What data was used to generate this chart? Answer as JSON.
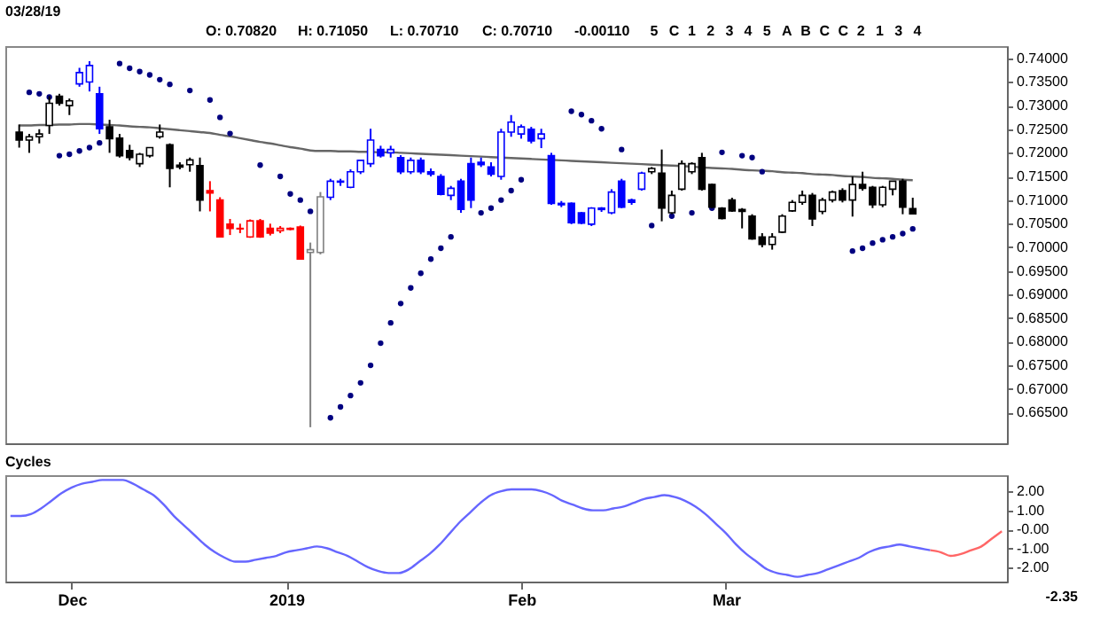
{
  "chart_data": [
    {
      "type": "candlestick",
      "title": "03/28/19",
      "annotations": [
        "O: 0.70820",
        "H: 0.71050",
        "L: 0.70710",
        "C: 0.70710",
        "-0.00110",
        "5",
        "C",
        "1",
        "2",
        "3",
        "4",
        "5",
        "A",
        "B",
        "C",
        "C",
        "2",
        "1",
        "3",
        "4"
      ],
      "ylim": [
        0.6585,
        0.7426
      ],
      "tick_labels": "y",
      "yticks": [
        {
          "value": 0.74,
          "label": "0.74000"
        },
        {
          "value": 0.735,
          "label": "0.73500"
        },
        {
          "value": 0.73,
          "label": "0.73000"
        },
        {
          "value": 0.725,
          "label": "0.72500"
        },
        {
          "value": 0.72,
          "label": "0.72000"
        },
        {
          "value": 0.715,
          "label": "0.71500"
        },
        {
          "value": 0.71,
          "label": "0.71000"
        },
        {
          "value": 0.705,
          "label": "0.70500"
        },
        {
          "value": 0.7,
          "label": "0.70000"
        },
        {
          "value": 0.695,
          "label": "0.69500"
        },
        {
          "value": 0.69,
          "label": "0.69000"
        },
        {
          "value": 0.685,
          "label": "0.68500"
        },
        {
          "value": 0.68,
          "label": "0.68000"
        },
        {
          "value": 0.675,
          "label": "0.67500"
        },
        {
          "value": 0.67,
          "label": "0.67000"
        },
        {
          "value": 0.665,
          "label": "0.66500"
        }
      ],
      "categories": [
        null,
        null,
        null,
        null,
        null,
        null,
        null,
        null,
        null,
        null,
        null,
        null,
        null,
        null,
        null,
        null,
        null,
        null,
        null,
        null,
        null,
        null,
        null,
        null,
        null,
        null,
        null,
        null,
        null,
        null,
        null,
        null,
        null,
        null,
        null,
        null,
        null,
        null,
        null,
        null,
        null,
        null,
        null,
        null,
        null,
        null,
        null,
        null,
        null,
        null,
        null,
        null,
        null,
        null,
        null,
        null,
        null,
        null,
        null,
        null,
        null,
        null,
        null,
        null,
        null,
        null,
        null,
        null,
        null,
        null,
        null,
        null,
        null,
        null,
        null,
        null,
        null,
        null,
        null,
        null,
        null,
        null,
        null,
        null,
        null,
        null,
        null,
        null,
        null,
        null
      ],
      "ohlc": [
        [
          0.7244,
          0.726,
          0.7211,
          0.7227
        ],
        [
          0.7227,
          0.724,
          0.72,
          0.7234
        ],
        [
          0.7234,
          0.725,
          0.722,
          0.724
        ],
        [
          0.7258,
          0.732,
          0.724,
          0.7305
        ],
        [
          0.732,
          0.7325,
          0.73,
          0.7305
        ],
        [
          0.73,
          0.7315,
          0.728,
          0.731
        ],
        [
          0.7346,
          0.738,
          0.734,
          0.737
        ],
        [
          0.735,
          0.7394,
          0.733,
          0.7385
        ],
        [
          0.7325,
          0.734,
          0.724,
          0.7251
        ],
        [
          0.7255,
          0.727,
          0.72,
          0.723
        ],
        [
          0.7231,
          0.724,
          0.719,
          0.7194
        ],
        [
          0.7205,
          0.7217,
          0.7184,
          0.719
        ],
        [
          0.7177,
          0.72,
          0.717,
          0.7197
        ],
        [
          0.7194,
          0.7211,
          0.719,
          0.7211
        ],
        [
          0.7234,
          0.726,
          0.723,
          0.7244
        ],
        [
          0.7217,
          0.722,
          0.7127,
          0.7167
        ],
        [
          0.7174,
          0.718,
          0.7165,
          0.717
        ],
        [
          0.7175,
          0.719,
          0.716,
          0.7185
        ],
        [
          0.7173,
          0.719,
          0.7076,
          0.71
        ],
        [
          0.712,
          0.714,
          0.7076,
          0.7115
        ],
        [
          0.71,
          0.7106,
          0.7022,
          0.7022
        ],
        [
          0.7049,
          0.706,
          0.7026,
          0.704
        ],
        [
          0.704,
          0.705,
          0.703,
          0.7039
        ],
        [
          0.7022,
          0.7059,
          0.702,
          0.7056
        ],
        [
          0.7056,
          0.706,
          0.702,
          0.7022
        ],
        [
          0.704,
          0.705,
          0.7025,
          0.703
        ],
        [
          0.7035,
          0.7045,
          0.703,
          0.704
        ],
        [
          0.7038,
          0.7042,
          0.7036,
          0.704
        ],
        [
          0.7043,
          0.7046,
          0.6975,
          0.6975
        ],
        [
          0.6989,
          0.701,
          0.6619,
          0.6995
        ],
        [
          0.6989,
          0.7117,
          0.6985,
          0.7107
        ],
        [
          0.7106,
          0.7145,
          0.71,
          0.714
        ],
        [
          0.7138,
          0.7145,
          0.713,
          0.714
        ],
        [
          0.7127,
          0.7165,
          0.7125,
          0.716
        ],
        [
          0.716,
          0.7184,
          0.7155,
          0.7184
        ],
        [
          0.7177,
          0.7251,
          0.717,
          0.7227
        ],
        [
          0.7207,
          0.7215,
          0.719,
          0.7194
        ],
        [
          0.72,
          0.7215,
          0.719,
          0.7207
        ],
        [
          0.719,
          0.7195,
          0.7155,
          0.716
        ],
        [
          0.716,
          0.719,
          0.7155,
          0.7184
        ],
        [
          0.7184,
          0.719,
          0.7155,
          0.716
        ],
        [
          0.716,
          0.7167,
          0.715,
          0.7155
        ],
        [
          0.715,
          0.7155,
          0.711,
          0.7112
        ],
        [
          0.711,
          0.713,
          0.71,
          0.7125
        ],
        [
          0.714,
          0.7145,
          0.7073,
          0.708
        ],
        [
          0.7177,
          0.719,
          0.7083,
          0.71
        ],
        [
          0.718,
          0.719,
          0.717,
          0.7175
        ],
        [
          0.717,
          0.718,
          0.715,
          0.7155
        ],
        [
          0.715,
          0.7251,
          0.7143,
          0.7244
        ],
        [
          0.7244,
          0.728,
          0.7234,
          0.7265
        ],
        [
          0.724,
          0.726,
          0.723,
          0.7255
        ],
        [
          0.725,
          0.7255,
          0.722,
          0.7225
        ],
        [
          0.723,
          0.7251,
          0.721,
          0.724
        ],
        [
          0.7194,
          0.72,
          0.709,
          0.7093
        ],
        [
          0.7093,
          0.7098,
          0.7085,
          0.709
        ],
        [
          0.7093,
          0.7095,
          0.7049,
          0.7052
        ],
        [
          0.7073,
          0.7075,
          0.7049,
          0.7051
        ],
        [
          0.7049,
          0.7085,
          0.7045,
          0.7083
        ],
        [
          0.708,
          0.7085,
          0.7075,
          0.7083
        ],
        [
          0.7073,
          0.7123,
          0.707,
          0.7117
        ],
        [
          0.714,
          0.7145,
          0.7083,
          0.7085
        ],
        [
          0.71,
          0.7103,
          0.709,
          0.7095
        ],
        [
          0.7123,
          0.716,
          0.712,
          0.7157
        ],
        [
          0.716,
          0.717,
          0.7155,
          0.7167
        ],
        [
          0.7157,
          0.7207,
          0.7055,
          0.7083
        ],
        [
          0.7073,
          0.712,
          0.707,
          0.711
        ],
        [
          0.7123,
          0.7184,
          0.712,
          0.7177
        ],
        [
          0.716,
          0.718,
          0.7155,
          0.7177
        ],
        [
          0.719,
          0.72,
          0.712,
          0.7123
        ],
        [
          0.7133,
          0.7135,
          0.7083,
          0.7085
        ],
        [
          0.7083,
          0.7085,
          0.7059,
          0.7061
        ],
        [
          0.71,
          0.7105,
          0.7075,
          0.7077
        ],
        [
          0.708,
          0.7083,
          0.704,
          0.7076
        ],
        [
          0.7066,
          0.707,
          0.7016,
          0.7018
        ],
        [
          0.7022,
          0.703,
          0.7,
          0.7006
        ],
        [
          0.7006,
          0.703,
          0.6995,
          0.7022
        ],
        [
          0.7032,
          0.707,
          0.703,
          0.7066
        ],
        [
          0.7077,
          0.71,
          0.7075,
          0.7095
        ],
        [
          0.7095,
          0.712,
          0.709,
          0.711
        ],
        [
          0.711,
          0.7115,
          0.7045,
          0.706
        ],
        [
          0.7076,
          0.7105,
          0.707,
          0.71
        ],
        [
          0.71,
          0.712,
          0.7095,
          0.7117
        ],
        [
          0.712,
          0.7125,
          0.7095,
          0.71
        ],
        [
          0.71,
          0.715,
          0.7065,
          0.7133
        ],
        [
          0.7133,
          0.716,
          0.712,
          0.7125
        ],
        [
          0.7127,
          0.713,
          0.7083,
          0.709
        ],
        [
          0.709,
          0.713,
          0.7085,
          0.7127
        ],
        [
          0.7123,
          0.714,
          0.711,
          0.714
        ],
        [
          0.714,
          0.7145,
          0.707,
          0.7085
        ],
        [
          0.7082,
          0.7105,
          0.7071,
          0.7071
        ]
      ],
      "colors": [
        "#000000",
        "#000000",
        "#000000",
        "#000000",
        "#000000",
        "#000000",
        "#0000ff",
        "#0000ff",
        "#0000ff",
        "#000000",
        "#000000",
        "#000000",
        "#000000",
        "#000000",
        "#000000",
        "#000000",
        "#000000",
        "#000000",
        "#000000",
        "#ff0000",
        "#ff0000",
        "#ff0000",
        "#ff0000",
        "#ff0000",
        "#ff0000",
        "#ff0000",
        "#ff0000",
        "#ff0000",
        "#ff0000",
        "#808080",
        "#808080",
        "#0000ff",
        "#0000ff",
        "#0000ff",
        "#0000ff",
        "#0000ff",
        "#0000ff",
        "#0000ff",
        "#0000ff",
        "#0000ff",
        "#0000ff",
        "#0000ff",
        "#0000ff",
        "#0000ff",
        "#0000ff",
        "#0000ff",
        "#0000ff",
        "#0000ff",
        "#0000ff",
        "#0000ff",
        "#0000ff",
        "#0000ff",
        "#0000ff",
        "#0000ff",
        "#0000ff",
        "#0000ff",
        "#0000ff",
        "#0000ff",
        "#0000ff",
        "#0000ff",
        "#0000ff",
        "#0000ff",
        "#0000ff",
        "#000000",
        "#000000",
        "#000000",
        "#000000",
        "#000000",
        "#000000",
        "#000000",
        "#000000",
        "#000000",
        "#000000",
        "#000000",
        "#000000",
        "#000000",
        "#000000",
        "#000000",
        "#000000",
        "#000000",
        "#000000",
        "#000000",
        "#000000",
        "#000000",
        "#000000",
        "#000000",
        "#000000",
        "#000000",
        "#000000",
        "#000000"
      ],
      "series": [
        {
          "type": "line",
          "color": "#666666",
          "values": [
            0.7258,
            0.7258,
            0.7259,
            0.7259,
            0.726,
            0.726,
            0.7261,
            0.7261,
            0.726,
            0.7259,
            0.7258,
            0.7256,
            0.7255,
            0.7254,
            0.7252,
            0.725,
            0.7248,
            0.7246,
            0.7244,
            0.7242,
            0.7238,
            0.7235,
            0.7231,
            0.7227,
            0.7223,
            0.722,
            0.7216,
            0.7212,
            0.7209,
            0.7205,
            0.7204,
            0.7204,
            0.7203,
            0.7203,
            0.7202,
            0.7202,
            0.7201,
            0.7201,
            0.72,
            0.7199,
            0.7198,
            0.7197,
            0.7196,
            0.7195,
            0.7194,
            0.7193,
            0.7192,
            0.7191,
            0.719,
            0.7189,
            0.7188,
            0.7187,
            0.7186,
            0.7185,
            0.7184,
            0.7183,
            0.7182,
            0.7181,
            0.718,
            0.7179,
            0.7178,
            0.7177,
            0.7176,
            0.7175,
            0.7174,
            0.7173,
            0.7172,
            0.7171,
            0.7169,
            0.7168,
            0.7167,
            0.7166,
            0.7164,
            0.7163,
            0.7162,
            0.7161,
            0.7159,
            0.7158,
            0.7157,
            0.7155,
            0.7154,
            0.7153,
            0.7151,
            0.715,
            0.7149,
            0.7147,
            0.7146,
            0.7145,
            0.7143,
            0.7142
          ]
        },
        {
          "type": "scatter",
          "color": "#000080",
          "values": [
            null,
            0.7328,
            0.7325,
            0.7318,
            0.7194,
            0.7197,
            0.7204,
            0.7211,
            0.7221,
            null,
            0.7389,
            0.7379,
            0.7372,
            0.7365,
            0.7355,
            0.7345,
            null,
            0.7332,
            null,
            0.7312,
            0.7275,
            0.7241,
            null,
            null,
            0.7174,
            null,
            0.715,
            0.7113,
            0.71,
            0.7076,
            null,
            0.6639,
            0.6662,
            0.6686,
            0.6713,
            0.675,
            0.6797,
            0.684,
            0.6881,
            0.6914,
            0.6945,
            0.6975,
            0.6998,
            0.7022,
            null,
            null,
            0.7073,
            0.7083,
            0.71,
            0.712,
            0.7143,
            null,
            null,
            null,
            null,
            0.7288,
            0.7281,
            0.7268,
            0.7251,
            null,
            0.7207,
            null,
            null,
            0.7046,
            null,
            0.7066,
            null,
            0.7073,
            null,
            0.7083,
            0.7201,
            null,
            0.7194,
            0.719,
            0.716,
            null,
            null,
            null,
            null,
            null,
            null,
            null,
            null,
            0.6992,
            0.6998,
            0.7009,
            0.7016,
            0.7022,
            0.7029,
            0.7039
          ]
        }
      ]
    },
    {
      "type": "line",
      "title": "Cycles",
      "annotations": [
        "-2.35"
      ],
      "ylim": [
        -2.75,
        2.85
      ],
      "categories": [
        null,
        null,
        null,
        null,
        null,
        null,
        "Dec",
        null,
        null,
        null,
        null,
        null,
        null,
        null,
        null,
        null,
        null,
        null,
        null,
        null,
        null,
        null,
        null,
        null,
        null,
        null,
        null,
        "2019",
        null,
        null,
        null,
        null,
        null,
        null,
        null,
        null,
        null,
        null,
        null,
        null,
        null,
        null,
        null,
        null,
        null,
        null,
        null,
        null,
        null,
        null,
        "Feb",
        null,
        null,
        null,
        null,
        null,
        null,
        null,
        null,
        null,
        null,
        null,
        null,
        null,
        null,
        null,
        null,
        null,
        null,
        null,
        "Mar",
        null,
        null,
        null,
        null,
        null,
        null,
        null,
        null,
        null,
        null,
        null,
        null,
        null,
        null,
        null,
        null,
        null,
        null,
        null,
        null,
        null,
        null,
        null,
        null,
        null,
        null,
        null
      ],
      "yticks": [
        {
          "value": 2,
          "label": "2.00"
        },
        {
          "value": 1,
          "label": "1.00"
        },
        {
          "value": 0,
          "label": "-0.00"
        },
        {
          "value": -1,
          "label": "-1.00"
        },
        {
          "value": -2,
          "label": "-2.00"
        }
      ],
      "series": [
        {
          "color": "#6666ff",
          "values": [
            0.7,
            0.7,
            0.8,
            1.1,
            1.5,
            1.9,
            2.2,
            2.4,
            2.5,
            2.6,
            2.6,
            2.6,
            2.4,
            2.1,
            1.8,
            1.3,
            0.7,
            0.2,
            -0.3,
            -0.8,
            -1.2,
            -1.5,
            -1.7,
            -1.7,
            -1.6,
            -1.5,
            -1.4,
            -1.2,
            -1.1,
            -1.0,
            -0.9,
            -1.0,
            -1.2,
            -1.4,
            -1.7,
            -2.0,
            -2.2,
            -2.3,
            -2.3,
            -2.1,
            -1.7,
            -1.3,
            -0.8,
            -0.2,
            0.4,
            0.9,
            1.4,
            1.8,
            2.0,
            2.1,
            2.1,
            2.1,
            2.0,
            1.8,
            1.5,
            1.3,
            1.1,
            1.0,
            1.0,
            1.1,
            1.2,
            1.4,
            1.6,
            1.7,
            1.8,
            1.7,
            1.5,
            1.2,
            0.8,
            0.3,
            -0.2,
            -0.8,
            -1.3,
            -1.7,
            -2.1,
            -2.3,
            -2.4,
            -2.5,
            -2.4,
            -2.3,
            -2.1,
            -1.9,
            -1.7,
            -1.5,
            -1.2,
            -1.0,
            -0.9,
            -0.8,
            -0.9,
            -1.0,
            -1.1,
            null,
            null,
            null,
            null,
            null,
            null,
            null
          ]
        },
        {
          "color": "#ff6666",
          "values": [
            null,
            null,
            null,
            null,
            null,
            null,
            null,
            null,
            null,
            null,
            null,
            null,
            null,
            null,
            null,
            null,
            null,
            null,
            null,
            null,
            null,
            null,
            null,
            null,
            null,
            null,
            null,
            null,
            null,
            null,
            null,
            null,
            null,
            null,
            null,
            null,
            null,
            null,
            null,
            null,
            null,
            null,
            null,
            null,
            null,
            null,
            null,
            null,
            null,
            null,
            null,
            null,
            null,
            null,
            null,
            null,
            null,
            null,
            null,
            null,
            null,
            null,
            null,
            null,
            null,
            null,
            null,
            null,
            null,
            null,
            null,
            null,
            null,
            null,
            null,
            null,
            null,
            null,
            null,
            null,
            null,
            null,
            null,
            null,
            null,
            null,
            null,
            null,
            null,
            null,
            -1.1,
            -1.2,
            -1.4,
            -1.3,
            -1.1,
            -0.9,
            -0.5,
            -0.1
          ]
        }
      ]
    }
  ]
}
